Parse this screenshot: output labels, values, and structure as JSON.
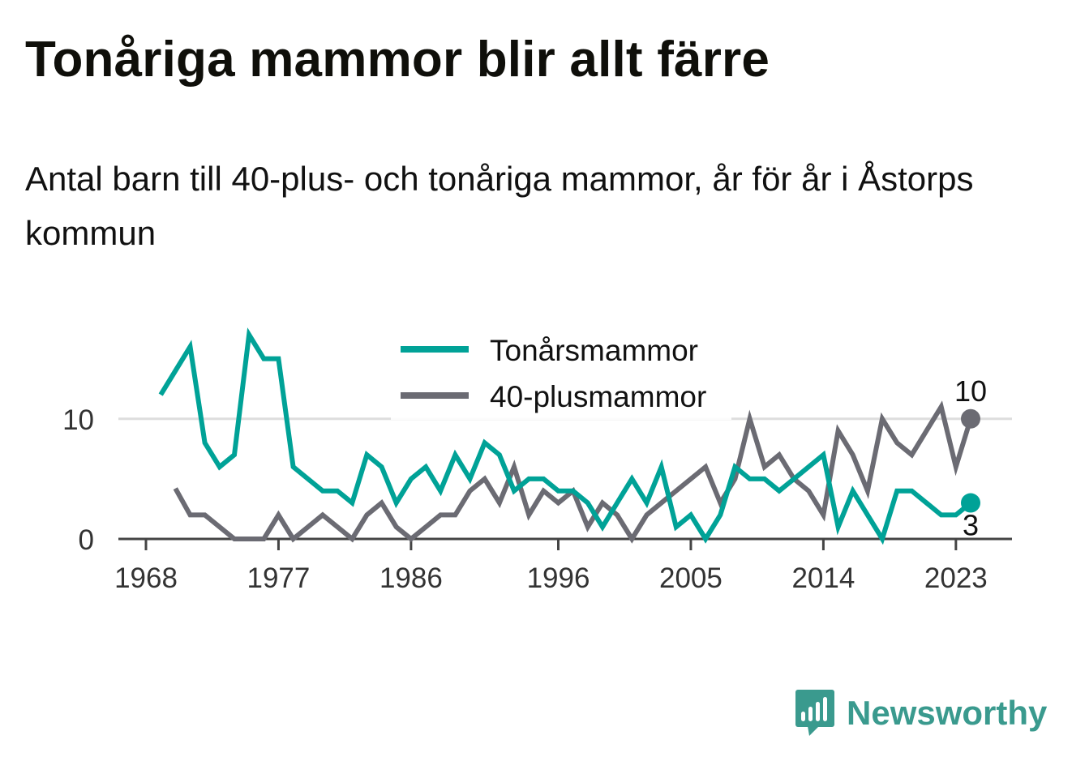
{
  "title": "Tonåriga mammor blir allt färre",
  "subtitle": "Antal barn till 40-plus- och tonåriga mammor, år för år i Åstorps kommun",
  "brand": {
    "name": "Newsworthy",
    "icon": "newsworthy-logo-icon"
  },
  "colors": {
    "teen": "#00a297",
    "forty": "#6b6b73",
    "axis": "#444444",
    "grid": "#dddddd"
  },
  "chart_data": {
    "type": "line",
    "xlim": [
      1968,
      2024
    ],
    "ylim": [
      0,
      17
    ],
    "x_ticks": [
      "1968",
      "1977",
      "1986",
      "1996",
      "2005",
      "2014",
      "2023"
    ],
    "y_ticks": [
      "0",
      "10"
    ],
    "grid": "horizontal",
    "legend_position": "top-center",
    "series": [
      {
        "name": "Tonårsmammor",
        "color": "#00a297",
        "end_label": "3",
        "points": [
          [
            1969,
            12
          ],
          [
            1970,
            14
          ],
          [
            1971,
            16
          ],
          [
            1972,
            8
          ],
          [
            1973,
            6
          ],
          [
            1974,
            7
          ],
          [
            1975,
            17
          ],
          [
            1976,
            15
          ],
          [
            1977,
            15
          ],
          [
            1978,
            6
          ],
          [
            1979,
            5
          ],
          [
            1980,
            4
          ],
          [
            1981,
            4
          ],
          [
            1982,
            3
          ],
          [
            1983,
            7
          ],
          [
            1984,
            6
          ],
          [
            1985,
            3
          ],
          [
            1986,
            5
          ],
          [
            1987,
            6
          ],
          [
            1988,
            4
          ],
          [
            1989,
            7
          ],
          [
            1990,
            5
          ],
          [
            1991,
            8
          ],
          [
            1992,
            7
          ],
          [
            1993,
            4
          ],
          [
            1994,
            5
          ],
          [
            1995,
            5
          ],
          [
            1996,
            4
          ],
          [
            1997,
            4
          ],
          [
            1998,
            3
          ],
          [
            1999,
            1
          ],
          [
            2000,
            3
          ],
          [
            2001,
            5
          ],
          [
            2002,
            3
          ],
          [
            2003,
            6
          ],
          [
            2004,
            1
          ],
          [
            2005,
            2
          ],
          [
            2006,
            0
          ],
          [
            2007,
            2
          ],
          [
            2008,
            6
          ],
          [
            2009,
            5
          ],
          [
            2010,
            5
          ],
          [
            2011,
            4
          ],
          [
            2012,
            5
          ],
          [
            2013,
            6
          ],
          [
            2014,
            7
          ],
          [
            2015,
            1
          ],
          [
            2016,
            4
          ],
          [
            2017,
            2
          ],
          [
            2018,
            0
          ],
          [
            2019,
            4
          ],
          [
            2020,
            4
          ],
          [
            2021,
            3
          ],
          [
            2022,
            2
          ],
          [
            2023,
            2
          ],
          [
            2024,
            3
          ]
        ]
      },
      {
        "name": "40-plusmammor",
        "color": "#6b6b73",
        "end_label": "10",
        "points": [
          [
            1970,
            4.2
          ],
          [
            1971,
            2
          ],
          [
            1972,
            2
          ],
          [
            1973,
            1
          ],
          [
            1974,
            0
          ],
          [
            1975,
            0
          ],
          [
            1976,
            0
          ],
          [
            1977,
            2
          ],
          [
            1978,
            0
          ],
          [
            1979,
            1
          ],
          [
            1980,
            2
          ],
          [
            1981,
            1
          ],
          [
            1982,
            0
          ],
          [
            1983,
            2
          ],
          [
            1984,
            3
          ],
          [
            1985,
            1
          ],
          [
            1986,
            0
          ],
          [
            1987,
            1
          ],
          [
            1988,
            2
          ],
          [
            1989,
            2
          ],
          [
            1990,
            4
          ],
          [
            1991,
            5
          ],
          [
            1992,
            3
          ],
          [
            1993,
            6
          ],
          [
            1994,
            2
          ],
          [
            1995,
            4
          ],
          [
            1996,
            3
          ],
          [
            1997,
            4
          ],
          [
            1998,
            1
          ],
          [
            1999,
            3
          ],
          [
            2000,
            2
          ],
          [
            2001,
            0
          ],
          [
            2002,
            2
          ],
          [
            2003,
            3
          ],
          [
            2004,
            4
          ],
          [
            2005,
            5
          ],
          [
            2006,
            6
          ],
          [
            2007,
            3
          ],
          [
            2008,
            5
          ],
          [
            2009,
            10
          ],
          [
            2010,
            6
          ],
          [
            2011,
            7
          ],
          [
            2012,
            5
          ],
          [
            2013,
            4
          ],
          [
            2014,
            2
          ],
          [
            2015,
            9
          ],
          [
            2016,
            7
          ],
          [
            2017,
            4
          ],
          [
            2018,
            10
          ],
          [
            2019,
            8
          ],
          [
            2020,
            7
          ],
          [
            2021,
            9
          ],
          [
            2022,
            11
          ],
          [
            2023,
            6
          ],
          [
            2024,
            10
          ]
        ]
      }
    ]
  }
}
